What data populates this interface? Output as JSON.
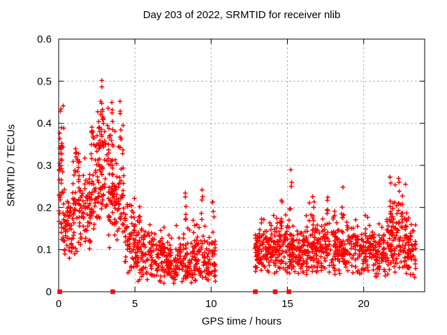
{
  "chart_data": {
    "type": "scatter",
    "title": "Day 203 of 2022, SRMTID for receiver nlib",
    "xlabel": "GPS time / hours",
    "ylabel": "SRMTID / TECUs",
    "xlim": [
      0,
      24
    ],
    "ylim": [
      0,
      0.6
    ],
    "xticks": [
      0,
      5,
      10,
      15,
      20
    ],
    "xtick_labels": [
      "0",
      "5",
      "10",
      "15",
      "20"
    ],
    "yticks": [
      0,
      0.1,
      0.2,
      0.3,
      0.4,
      0.5,
      0.6
    ],
    "ytick_labels": [
      "0",
      "0.1",
      "0.2",
      "0.3",
      "0.4",
      "0.5",
      "0.6"
    ],
    "grid": true,
    "legend": false,
    "marker": {
      "shape": "plus",
      "size": 7,
      "color": "#ff0000"
    },
    "colors": {
      "marker": "#ff0000",
      "grid": "#b0b0b0",
      "frame": "#000000",
      "background": "#ffffff",
      "text": "#000000"
    },
    "gap_intervals": [
      [
        10.35,
        12.85
      ]
    ],
    "baseline_markers": {
      "shape": "filled-square",
      "color": "#ff0000",
      "size": 6.6,
      "y": 0,
      "x": [
        0.07,
        3.55,
        12.9,
        14.2,
        15.1
      ]
    },
    "description": "Dense red '+' scatter of SRMTID vs GPS time. Morning block 0-10.3 h: high scatter 0.05-0.45 TECUs with absolute peak ~0.53 near 2.9 h, decaying to a 0.03-0.2 band after 5 h. No data 10.35-12.85 h. Evening block 12.85-23.45 h: band ~0.05-0.17 with spikes to ~0.29 near 15.2 h and 21.7 h. Red squares on the x-axis mark times 0.07, 3.55, 12.9, 14.2, 15.1 h at value 0.",
    "point_generation": {
      "seed": 42,
      "cluster_spacing_hours": 0.13,
      "x_jitter_hours": 0.09,
      "segments": [
        {
          "x0": 0.0,
          "x1": 0.35,
          "n": 45,
          "mu": 0.25,
          "sigma": 0.09,
          "min": 0.08,
          "max": 0.46
        },
        {
          "x0": 0.35,
          "x1": 0.9,
          "n": 50,
          "mu": 0.15,
          "sigma": 0.05,
          "min": 0.06,
          "max": 0.32
        },
        {
          "x0": 0.9,
          "x1": 1.4,
          "n": 55,
          "mu": 0.2,
          "sigma": 0.07,
          "min": 0.08,
          "max": 0.42
        },
        {
          "x0": 1.4,
          "x1": 2.1,
          "n": 60,
          "mu": 0.2,
          "sigma": 0.06,
          "min": 0.08,
          "max": 0.35
        },
        {
          "x0": 2.1,
          "x1": 2.6,
          "n": 55,
          "mu": 0.26,
          "sigma": 0.07,
          "min": 0.1,
          "max": 0.46
        },
        {
          "x0": 2.6,
          "x1": 3.1,
          "n": 60,
          "mu": 0.3,
          "sigma": 0.09,
          "min": 0.12,
          "max": 0.53
        },
        {
          "x0": 3.1,
          "x1": 3.6,
          "n": 60,
          "mu": 0.26,
          "sigma": 0.08,
          "min": 0.1,
          "max": 0.47
        },
        {
          "x0": 3.6,
          "x1": 4.3,
          "n": 65,
          "mu": 0.22,
          "sigma": 0.08,
          "min": 0.08,
          "max": 0.46
        },
        {
          "x0": 4.3,
          "x1": 5.0,
          "n": 60,
          "mu": 0.13,
          "sigma": 0.05,
          "min": 0.04,
          "max": 0.3
        },
        {
          "x0": 5.0,
          "x1": 6.0,
          "n": 80,
          "mu": 0.085,
          "sigma": 0.035,
          "min": 0.02,
          "max": 0.21
        },
        {
          "x0": 6.0,
          "x1": 7.0,
          "n": 85,
          "mu": 0.08,
          "sigma": 0.03,
          "min": 0.02,
          "max": 0.18
        },
        {
          "x0": 7.0,
          "x1": 8.0,
          "n": 85,
          "mu": 0.075,
          "sigma": 0.03,
          "min": 0.015,
          "max": 0.17
        },
        {
          "x0": 8.0,
          "x1": 9.0,
          "n": 85,
          "mu": 0.08,
          "sigma": 0.035,
          "min": 0.02,
          "max": 0.22
        },
        {
          "x0": 9.0,
          "x1": 10.3,
          "n": 90,
          "mu": 0.08,
          "sigma": 0.035,
          "min": 0.02,
          "max": 0.2
        },
        {
          "x0": 12.85,
          "x1": 13.6,
          "n": 70,
          "mu": 0.095,
          "sigma": 0.03,
          "min": 0.04,
          "max": 0.19
        },
        {
          "x0": 13.6,
          "x1": 14.4,
          "n": 75,
          "mu": 0.1,
          "sigma": 0.035,
          "min": 0.04,
          "max": 0.22
        },
        {
          "x0": 14.4,
          "x1": 15.2,
          "n": 75,
          "mu": 0.1,
          "sigma": 0.035,
          "min": 0.04,
          "max": 0.24
        },
        {
          "x0": 15.2,
          "x1": 16.2,
          "n": 85,
          "mu": 0.095,
          "sigma": 0.03,
          "min": 0.04,
          "max": 0.22
        },
        {
          "x0": 16.2,
          "x1": 17.0,
          "n": 80,
          "mu": 0.1,
          "sigma": 0.035,
          "min": 0.04,
          "max": 0.24
        },
        {
          "x0": 17.0,
          "x1": 18.2,
          "n": 95,
          "mu": 0.1,
          "sigma": 0.035,
          "min": 0.04,
          "max": 0.25
        },
        {
          "x0": 18.2,
          "x1": 19.4,
          "n": 95,
          "mu": 0.1,
          "sigma": 0.035,
          "min": 0.04,
          "max": 0.25
        },
        {
          "x0": 19.4,
          "x1": 20.6,
          "n": 95,
          "mu": 0.095,
          "sigma": 0.03,
          "min": 0.04,
          "max": 0.2
        },
        {
          "x0": 20.6,
          "x1": 21.5,
          "n": 80,
          "mu": 0.09,
          "sigma": 0.03,
          "min": 0.03,
          "max": 0.18
        },
        {
          "x0": 21.5,
          "x1": 22.1,
          "n": 60,
          "mu": 0.12,
          "sigma": 0.05,
          "min": 0.04,
          "max": 0.29
        },
        {
          "x0": 22.1,
          "x1": 22.9,
          "n": 70,
          "mu": 0.12,
          "sigma": 0.05,
          "min": 0.04,
          "max": 0.27
        },
        {
          "x0": 22.9,
          "x1": 23.45,
          "n": 50,
          "mu": 0.1,
          "sigma": 0.035,
          "min": 0.03,
          "max": 0.2
        }
      ],
      "spikes": [
        {
          "x": 0.15,
          "y0": 0.28,
          "y1": 0.46,
          "n": 6
        },
        {
          "x": 1.15,
          "y0": 0.3,
          "y1": 0.4,
          "n": 5
        },
        {
          "x": 2.85,
          "y0": 0.32,
          "y1": 0.53,
          "n": 8
        },
        {
          "x": 3.5,
          "y0": 0.3,
          "y1": 0.47,
          "n": 6
        },
        {
          "x": 4.0,
          "y0": 0.34,
          "y1": 0.46,
          "n": 6
        },
        {
          "x": 5.3,
          "y0": 0.14,
          "y1": 0.21,
          "n": 5
        },
        {
          "x": 8.35,
          "y0": 0.15,
          "y1": 0.25,
          "n": 5
        },
        {
          "x": 9.4,
          "y0": 0.16,
          "y1": 0.27,
          "n": 5
        },
        {
          "x": 10.1,
          "y0": 0.13,
          "y1": 0.22,
          "n": 4
        },
        {
          "x": 13.3,
          "y0": 0.13,
          "y1": 0.18,
          "n": 4
        },
        {
          "x": 14.6,
          "y0": 0.15,
          "y1": 0.22,
          "n": 5
        },
        {
          "x": 15.25,
          "y0": 0.18,
          "y1": 0.29,
          "n": 4
        },
        {
          "x": 16.7,
          "y0": 0.16,
          "y1": 0.24,
          "n": 6
        },
        {
          "x": 17.6,
          "y0": 0.16,
          "y1": 0.25,
          "n": 5
        },
        {
          "x": 18.6,
          "y0": 0.16,
          "y1": 0.25,
          "n": 5
        },
        {
          "x": 21.75,
          "y0": 0.15,
          "y1": 0.29,
          "n": 8
        },
        {
          "x": 22.5,
          "y0": 0.15,
          "y1": 0.27,
          "n": 6
        }
      ]
    }
  }
}
